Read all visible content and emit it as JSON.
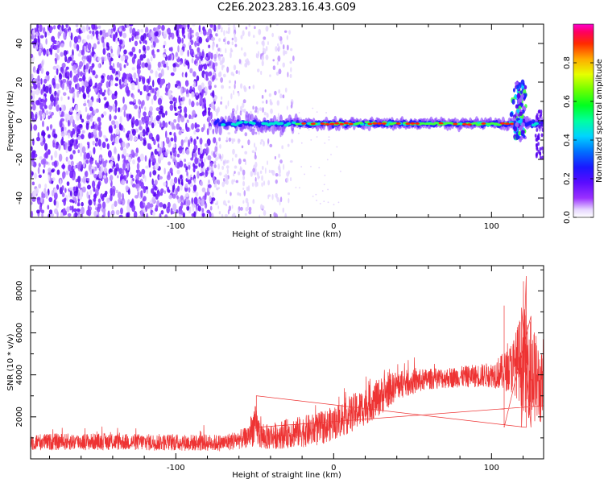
{
  "figure_title": "C2E6.2023.283.16.43.G09",
  "chart_data": [
    {
      "type": "heatmap",
      "xlabel": "Height of straight line (km)",
      "ylabel": "Frequency (Hz)",
      "xlim": [
        -192,
        133
      ],
      "ylim": [
        -50,
        50
      ],
      "x_ticks": [
        -100,
        0,
        100
      ],
      "y_ticks": [
        -40,
        -20,
        0,
        20,
        40
      ],
      "colorbar": {
        "label": "Normalized spectral amplitude",
        "range": [
          0,
          1
        ],
        "ticks": [
          "0.0",
          "0.2",
          "0.4",
          "0.6",
          "0.8"
        ]
      },
      "features": {
        "broadband_noise_x_range": [
          -192,
          -75
        ],
        "faint_noise_x_range": [
          -75,
          -25
        ],
        "signal_line_x_range": [
          -75,
          133
        ],
        "signal_line_frequency": -1.5,
        "signal_burst_x": 118,
        "signal_burst_frequency_range": [
          -10,
          20
        ]
      },
      "grid": false
    },
    {
      "type": "line",
      "xlabel": "Height of straight line (km)",
      "ylabel": "SNR (10 * v/v)",
      "xlim": [
        -192,
        133
      ],
      "ylim": [
        0,
        9200
      ],
      "x_ticks": [
        -100,
        0,
        100
      ],
      "y_ticks": [
        2000,
        4000,
        6000,
        8000
      ],
      "color": "#ee3333",
      "envelope": {
        "x": [
          -192,
          -150,
          -100,
          -70,
          -55,
          -50,
          -45,
          -30,
          -10,
          0,
          10,
          20,
          30,
          40,
          60,
          80,
          100,
          110,
          115,
          120,
          125,
          130,
          133
        ],
        "mean": [
          800,
          820,
          780,
          760,
          1000,
          1600,
          1000,
          1200,
          1400,
          1700,
          2100,
          2500,
          3000,
          3500,
          3800,
          3900,
          4000,
          4200,
          4500,
          4800,
          4300,
          3500,
          3300
        ],
        "spread": [
          400,
          400,
          400,
          400,
          500,
          1000,
          600,
          700,
          800,
          800,
          900,
          900,
          900,
          700,
          500,
          500,
          600,
          1000,
          1500,
          2500,
          2500,
          2000,
          1500
        ]
      },
      "grid": false
    }
  ]
}
